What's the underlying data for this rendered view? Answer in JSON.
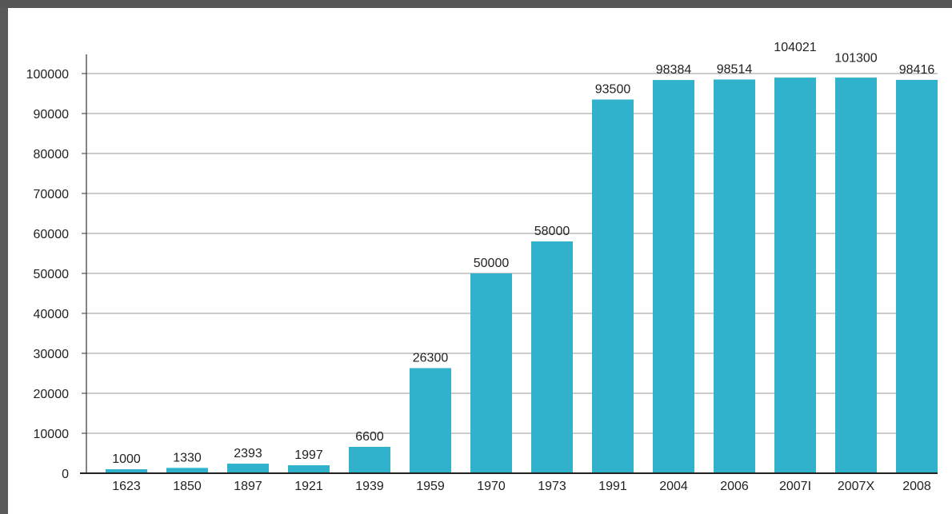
{
  "chart_data": {
    "type": "bar",
    "categories": [
      "1623",
      "1850",
      "1897",
      "1921",
      "1939",
      "1959",
      "1970",
      "1973",
      "1991",
      "2004",
      "2006",
      "2007I",
      "2007X",
      "2008"
    ],
    "values": [
      1000,
      1330,
      2393,
      1997,
      6600,
      26300,
      50000,
      58000,
      93500,
      98384,
      98514,
      104021,
      101300,
      98416
    ],
    "value_labels": [
      "1000",
      "1330",
      "2393",
      "1997",
      "6600",
      "26300",
      "50000",
      "58000",
      "93500",
      "98384",
      "98514",
      "104021",
      "101300",
      "98416"
    ],
    "y_ticks": [
      "0",
      "10000",
      "20000",
      "30000",
      "40000",
      "50000",
      "60000",
      "70000",
      "80000",
      "90000",
      "100000"
    ],
    "ylim": [
      0,
      100000
    ],
    "grid": true,
    "bar_color": "#31b2cc",
    "title": "",
    "xlabel": "",
    "ylabel": ""
  }
}
